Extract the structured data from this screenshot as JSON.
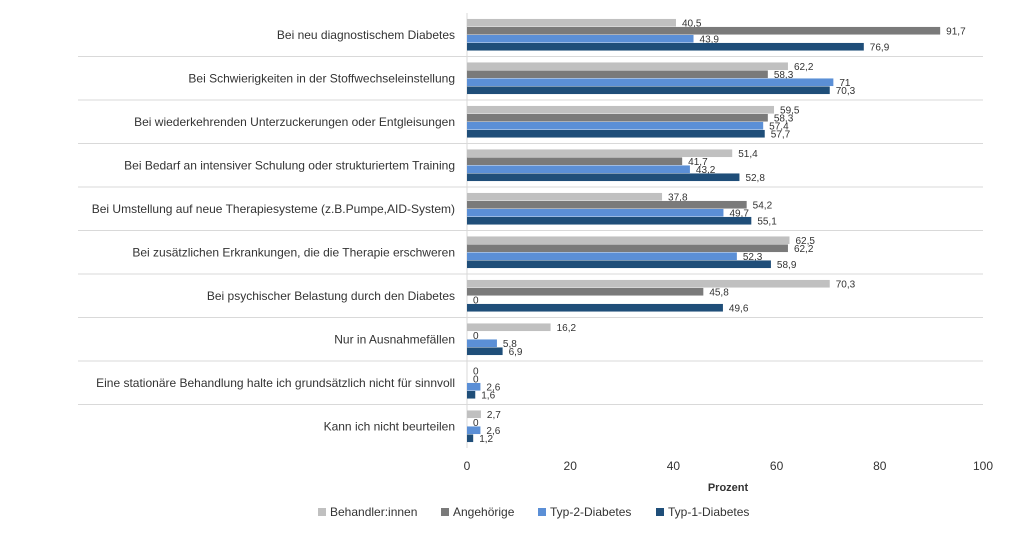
{
  "chart_data": {
    "type": "bar",
    "orientation": "horizontal",
    "categories": [
      "Bei neu diagnostischem Diabetes",
      "Bei Schwierigkeiten in der Stoffwechseleinstellung",
      "Bei wiederkehrenden Unterzuckerungen oder Entgleisungen",
      "Bei Bedarf an intensiver Schulung oder strukturiertem Training",
      "Bei Umstellung auf neue Therapiesysteme (z.B.Pumpe,AID-System)",
      "Bei zusätzlichen Erkrankungen, die die Therapie erschweren",
      "Bei psychischer Belastung durch den Diabetes",
      "Nur in Ausnahmefällen",
      "Eine stationäre Behandlung halte ich grundsätzlich nicht für sinnvoll",
      "Kann ich nicht beurteilen"
    ],
    "series": [
      {
        "name": "Behandler:innen",
        "color": "#c0c0c0",
        "values": [
          40.5,
          62.2,
          59.5,
          51.4,
          37.8,
          62.5,
          70.3,
          16.2,
          0,
          2.7
        ],
        "labels": [
          "40,5",
          "62,2",
          "59,5",
          "51,4",
          "37,8",
          "62,5",
          "70,3",
          "16,2",
          "0",
          "2,7"
        ]
      },
      {
        "name": "Angehörige",
        "color": "#7a7a7a",
        "values": [
          91.7,
          58.3,
          58.3,
          41.7,
          54.2,
          62.2,
          45.8,
          0,
          0,
          0
        ],
        "labels": [
          "91,7",
          "58,3",
          "58,3",
          "41,7",
          "54,2",
          "62,2",
          "45,8",
          "0",
          "0",
          "0"
        ]
      },
      {
        "name": "Typ-2-Diabetes",
        "color": "#5b8fd6",
        "values": [
          43.9,
          71,
          57.4,
          43.2,
          49.7,
          52.3,
          0,
          5.8,
          2.6,
          2.6
        ],
        "labels": [
          "43,9",
          "71",
          "57,4",
          "43,2",
          "49,7",
          "52,3",
          "0",
          "5,8",
          "2,6",
          "2,6"
        ]
      },
      {
        "name": "Typ-1-Diabetes",
        "color": "#1f4e79",
        "values": [
          76.9,
          70.3,
          57.7,
          52.8,
          55.1,
          58.9,
          49.6,
          6.9,
          1.6,
          1.2
        ],
        "labels": [
          "76,9",
          "70,3",
          "57,7",
          "52,8",
          "55,1",
          "58,9",
          "49,6",
          "6,9",
          "1,6",
          "1,2"
        ]
      }
    ],
    "xlim": [
      0,
      100
    ],
    "xticks": [
      0,
      20,
      40,
      60,
      80,
      100
    ],
    "xlabel": "Prozent",
    "ylabel": "",
    "title": "",
    "legend_position": "bottom",
    "grid": "horizontal separators between categories"
  }
}
